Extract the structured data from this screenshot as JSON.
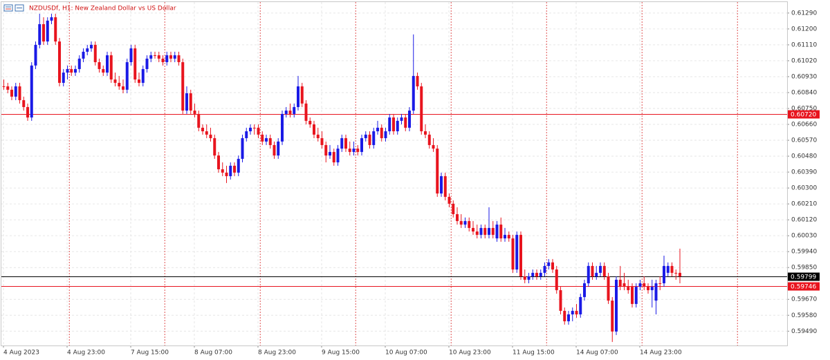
{
  "chart_data": {
    "type": "candlestick",
    "title": "NZDUSDf, H1:  New Zealand Dollar vs US Dollar",
    "up_color": "#1a1ae6",
    "down_color": "#e8141e",
    "grid": true,
    "ylim": [
      0.59409,
      0.61352
    ],
    "yticks": [
      {
        "value": 0.6129,
        "label": "0.61290"
      },
      {
        "value": 0.612,
        "label": "0.61200"
      },
      {
        "value": 0.6111,
        "label": "0.61110"
      },
      {
        "value": 0.6102,
        "label": "0.61020"
      },
      {
        "value": 0.6093,
        "label": "0.60930"
      },
      {
        "value": 0.6084,
        "label": "0.60840"
      },
      {
        "value": 0.6075,
        "label": "0.60750"
      },
      {
        "value": 0.6066,
        "label": "0.60660"
      },
      {
        "value": 0.6057,
        "label": "0.60570"
      },
      {
        "value": 0.6048,
        "label": "0.60480"
      },
      {
        "value": 0.6039,
        "label": "0.60390"
      },
      {
        "value": 0.603,
        "label": "0.60300"
      },
      {
        "value": 0.6021,
        "label": "0.60210"
      },
      {
        "value": 0.6012,
        "label": "0.60120"
      },
      {
        "value": 0.6003,
        "label": "0.60030"
      },
      {
        "value": 0.5994,
        "label": "0.59940"
      },
      {
        "value": 0.5985,
        "label": "0.59850"
      },
      {
        "value": 0.5967,
        "label": "0.59670"
      },
      {
        "value": 0.5958,
        "label": "0.59580"
      },
      {
        "value": 0.5949,
        "label": "0.59490"
      }
    ],
    "levels": [
      {
        "value": 0.6072,
        "label": "0.60720",
        "color": "#e8141e"
      },
      {
        "value": 0.59799,
        "label": "0.59799",
        "color": "#000000"
      },
      {
        "value": 0.59746,
        "label": "0.59746",
        "color": "#e8141e"
      }
    ],
    "categories": [
      "4 Aug 2023",
      null,
      null,
      null,
      null,
      null,
      null,
      null,
      null,
      null,
      null,
      null,
      null,
      null,
      null,
      null,
      "4 Aug 23:00",
      null,
      null,
      null,
      null,
      null,
      null,
      null,
      null,
      null,
      null,
      null,
      null,
      null,
      null,
      null,
      "7 Aug 15:00",
      null,
      null,
      null,
      null,
      null,
      null,
      null,
      null,
      null,
      null,
      null,
      null,
      null,
      null,
      null,
      "8 Aug 07:00",
      null,
      null,
      null,
      null,
      null,
      null,
      null,
      null,
      null,
      null,
      null,
      null,
      null,
      null,
      null,
      "8 Aug 23:00",
      null,
      null,
      null,
      null,
      null,
      null,
      null,
      null,
      null,
      null,
      null,
      null,
      null,
      null,
      null,
      "9 Aug 15:00",
      null,
      null,
      null,
      null,
      null,
      null,
      null,
      null,
      null,
      null,
      null,
      null,
      null,
      null,
      null,
      "10 Aug 07:00",
      null,
      null,
      null,
      null,
      null,
      null,
      null,
      null,
      null,
      null,
      null,
      null,
      null,
      null,
      null,
      "10 Aug 23:00",
      null,
      null,
      null,
      null,
      null,
      null,
      null,
      null,
      null,
      null,
      null,
      null,
      null,
      null,
      null,
      "11 Aug 15:00",
      null,
      null,
      null,
      null,
      null,
      null,
      null,
      null,
      null,
      null,
      null,
      null,
      null,
      null,
      null,
      "14 Aug 07:00",
      null,
      null,
      null,
      null,
      null,
      null,
      null,
      null,
      null,
      null,
      null,
      null,
      null,
      null,
      null,
      "14 Aug 23:00",
      null,
      null,
      null,
      null,
      null,
      null,
      null,
      null,
      null,
      null
    ],
    "candles": [
      [
        0.60875,
        0.60914,
        0.60856,
        0.60875
      ],
      [
        0.60875,
        0.60895,
        0.60836,
        0.60856
      ],
      [
        0.60856,
        0.60875,
        0.60797,
        0.60817
      ],
      [
        0.60817,
        0.60895,
        0.60797,
        0.60875
      ],
      [
        0.60875,
        0.60895,
        0.60778,
        0.60797
      ],
      [
        0.60797,
        0.60817,
        0.60738,
        0.60758
      ],
      [
        0.60758,
        0.60778,
        0.6068,
        0.60699
      ],
      [
        0.60699,
        0.61012,
        0.6068,
        0.60993
      ],
      [
        0.60993,
        0.61129,
        0.60973,
        0.6111
      ],
      [
        0.6111,
        0.61286,
        0.6109,
        0.61227
      ],
      [
        0.61227,
        0.61266,
        0.6111,
        0.61129
      ],
      [
        0.61129,
        0.61266,
        0.6111,
        0.61247
      ],
      [
        0.61247,
        0.61286,
        0.61227,
        0.61266
      ],
      [
        0.61266,
        0.61286,
        0.6111,
        0.61129
      ],
      [
        0.61129,
        0.61149,
        0.60875,
        0.60895
      ],
      [
        0.60895,
        0.60973,
        0.60875,
        0.60953
      ],
      [
        0.60953,
        0.60993,
        0.60914,
        0.60973
      ],
      [
        0.60973,
        0.60993,
        0.60934,
        0.60953
      ],
      [
        0.60953,
        0.60993,
        0.60934,
        0.60973
      ],
      [
        0.60973,
        0.61051,
        0.60953,
        0.61032
      ],
      [
        0.61032,
        0.6109,
        0.61012,
        0.61071
      ],
      [
        0.61071,
        0.6111,
        0.61051,
        0.6109
      ],
      [
        0.6109,
        0.61129,
        0.61071,
        0.6111
      ],
      [
        0.6111,
        0.61129,
        0.60993,
        0.61012
      ],
      [
        0.61012,
        0.61032,
        0.60953,
        0.60973
      ],
      [
        0.60973,
        0.60993,
        0.60934,
        0.60953
      ],
      [
        0.60953,
        0.61071,
        0.60934,
        0.61051
      ],
      [
        0.61051,
        0.61071,
        0.60895,
        0.60914
      ],
      [
        0.60914,
        0.60953,
        0.60875,
        0.60895
      ],
      [
        0.60895,
        0.60934,
        0.60856,
        0.60875
      ],
      [
        0.60875,
        0.60914,
        0.60836,
        0.60856
      ],
      [
        0.60856,
        0.61032,
        0.60836,
        0.61012
      ],
      [
        0.61012,
        0.6111,
        0.60993,
        0.6109
      ],
      [
        0.6109,
        0.6111,
        0.60895,
        0.60914
      ],
      [
        0.60914,
        0.60953,
        0.60875,
        0.60895
      ],
      [
        0.60895,
        0.60993,
        0.60875,
        0.60973
      ],
      [
        0.60973,
        0.61051,
        0.60953,
        0.61032
      ],
      [
        0.61032,
        0.61071,
        0.61012,
        0.61051
      ],
      [
        0.61051,
        0.61071,
        0.61032,
        0.61051
      ],
      [
        0.61051,
        0.61071,
        0.61012,
        0.61032
      ],
      [
        0.61032,
        0.61051,
        0.60993,
        0.61012
      ],
      [
        0.61012,
        0.61071,
        0.60993,
        0.61051
      ],
      [
        0.61051,
        0.61071,
        0.61012,
        0.61032
      ],
      [
        0.61032,
        0.61071,
        0.61012,
        0.61051
      ],
      [
        0.61051,
        0.61071,
        0.60993,
        0.61012
      ],
      [
        0.61012,
        0.61032,
        0.60719,
        0.60738
      ],
      [
        0.60738,
        0.60875,
        0.60719,
        0.60836
      ],
      [
        0.60836,
        0.60856,
        0.60719,
        0.60738
      ],
      [
        0.60738,
        0.60778,
        0.60699,
        0.60719
      ],
      [
        0.60719,
        0.60738,
        0.60621,
        0.60641
      ],
      [
        0.60641,
        0.6066,
        0.60602,
        0.60621
      ],
      [
        0.60621,
        0.6066,
        0.60582,
        0.60602
      ],
      [
        0.60602,
        0.60641,
        0.60563,
        0.60582
      ],
      [
        0.60582,
        0.60602,
        0.60465,
        0.60484
      ],
      [
        0.60484,
        0.60504,
        0.60387,
        0.60406
      ],
      [
        0.60406,
        0.60445,
        0.60367,
        0.60387
      ],
      [
        0.60387,
        0.60426,
        0.60328,
        0.60367
      ],
      [
        0.60367,
        0.60445,
        0.60348,
        0.60426
      ],
      [
        0.60426,
        0.60445,
        0.60367,
        0.60387
      ],
      [
        0.60387,
        0.60484,
        0.60367,
        0.60465
      ],
      [
        0.60465,
        0.60602,
        0.60445,
        0.60582
      ],
      [
        0.60582,
        0.60641,
        0.60563,
        0.60621
      ],
      [
        0.60621,
        0.6066,
        0.60602,
        0.60641
      ],
      [
        0.60641,
        0.6066,
        0.60602,
        0.60641
      ],
      [
        0.60641,
        0.6066,
        0.60582,
        0.60602
      ],
      [
        0.60602,
        0.60621,
        0.60543,
        0.60563
      ],
      [
        0.60563,
        0.60602,
        0.60543,
        0.60582
      ],
      [
        0.60582,
        0.60602,
        0.60523,
        0.60543
      ],
      [
        0.60543,
        0.60563,
        0.60465,
        0.60484
      ],
      [
        0.60484,
        0.60582,
        0.60465,
        0.60563
      ],
      [
        0.60563,
        0.60738,
        0.60543,
        0.60719
      ],
      [
        0.60719,
        0.60758,
        0.60699,
        0.60738
      ],
      [
        0.60738,
        0.60778,
        0.60699,
        0.60719
      ],
      [
        0.60719,
        0.60778,
        0.60699,
        0.60758
      ],
      [
        0.60758,
        0.60934,
        0.60738,
        0.60875
      ],
      [
        0.60875,
        0.60895,
        0.60758,
        0.60778
      ],
      [
        0.60778,
        0.60797,
        0.6066,
        0.6068
      ],
      [
        0.6068,
        0.60699,
        0.60641,
        0.6066
      ],
      [
        0.6066,
        0.6068,
        0.60582,
        0.60602
      ],
      [
        0.60602,
        0.60641,
        0.60563,
        0.60582
      ],
      [
        0.60582,
        0.60621,
        0.60523,
        0.60543
      ],
      [
        0.60543,
        0.60563,
        0.60445,
        0.60484
      ],
      [
        0.60484,
        0.60543,
        0.60465,
        0.60504
      ],
      [
        0.60504,
        0.60523,
        0.60426,
        0.60445
      ],
      [
        0.60445,
        0.60543,
        0.60426,
        0.60523
      ],
      [
        0.60523,
        0.60602,
        0.60504,
        0.60582
      ],
      [
        0.60582,
        0.60602,
        0.60504,
        0.60523
      ],
      [
        0.60523,
        0.60563,
        0.60484,
        0.60504
      ],
      [
        0.60504,
        0.60563,
        0.60484,
        0.60523
      ],
      [
        0.60523,
        0.60543,
        0.60484,
        0.60504
      ],
      [
        0.60504,
        0.60602,
        0.60484,
        0.60582
      ],
      [
        0.60582,
        0.60621,
        0.60563,
        0.60602
      ],
      [
        0.60602,
        0.60621,
        0.60523,
        0.60543
      ],
      [
        0.60543,
        0.60641,
        0.60523,
        0.60621
      ],
      [
        0.60621,
        0.6068,
        0.60602,
        0.60641
      ],
      [
        0.60641,
        0.6066,
        0.60563,
        0.60582
      ],
      [
        0.60582,
        0.60641,
        0.60563,
        0.60621
      ],
      [
        0.60621,
        0.60719,
        0.60602,
        0.60699
      ],
      [
        0.60699,
        0.60719,
        0.60602,
        0.60621
      ],
      [
        0.60621,
        0.60699,
        0.60602,
        0.6068
      ],
      [
        0.6068,
        0.60719,
        0.6066,
        0.60699
      ],
      [
        0.60699,
        0.60719,
        0.60621,
        0.60641
      ],
      [
        0.60641,
        0.60758,
        0.60621,
        0.60738
      ],
      [
        0.60738,
        0.61169,
        0.60719,
        0.60934
      ],
      [
        0.60934,
        0.60953,
        0.60856,
        0.60875
      ],
      [
        0.60875,
        0.60895,
        0.60602,
        0.60621
      ],
      [
        0.60621,
        0.6066,
        0.60582,
        0.60602
      ],
      [
        0.60602,
        0.60621,
        0.60523,
        0.60543
      ],
      [
        0.60543,
        0.60582,
        0.60504,
        0.60523
      ],
      [
        0.60523,
        0.60543,
        0.6025,
        0.60269
      ],
      [
        0.60269,
        0.60387,
        0.6025,
        0.60367
      ],
      [
        0.60367,
        0.60387,
        0.6023,
        0.6025
      ],
      [
        0.6025,
        0.60269,
        0.60191,
        0.60211
      ],
      [
        0.60211,
        0.6023,
        0.60133,
        0.60152
      ],
      [
        0.60152,
        0.60191,
        0.60093,
        0.60113
      ],
      [
        0.60113,
        0.60152,
        0.60074,
        0.60093
      ],
      [
        0.60093,
        0.60133,
        0.60074,
        0.60113
      ],
      [
        0.60113,
        0.60133,
        0.60054,
        0.60074
      ],
      [
        0.60074,
        0.60113,
        0.60035,
        0.60054
      ],
      [
        0.60054,
        0.60093,
        0.60015,
        0.60035
      ],
      [
        0.60035,
        0.60093,
        0.60015,
        0.60074
      ],
      [
        0.60074,
        0.60093,
        0.60015,
        0.60035
      ],
      [
        0.60035,
        0.60191,
        0.60015,
        0.60074
      ],
      [
        0.60074,
        0.60113,
        0.60015,
        0.60035
      ],
      [
        0.60015,
        0.60113,
        0.59996,
        0.60093
      ],
      [
        0.60093,
        0.60133,
        0.59996,
        0.60015
      ],
      [
        0.60015,
        0.60074,
        0.59996,
        0.60035
      ],
      [
        0.60035,
        0.60054,
        0.59996,
        0.60015
      ],
      [
        0.60015,
        0.60035,
        0.5982,
        0.59839
      ],
      [
        0.59839,
        0.60054,
        0.5982,
        0.60035
      ],
      [
        0.60035,
        0.60054,
        0.59781,
        0.598
      ],
      [
        0.598,
        0.59839,
        0.59761,
        0.59781
      ],
      [
        0.59781,
        0.5982,
        0.59761,
        0.598
      ],
      [
        0.598,
        0.59839,
        0.59781,
        0.5982
      ],
      [
        0.5982,
        0.59839,
        0.59781,
        0.598
      ],
      [
        0.598,
        0.59839,
        0.59781,
        0.5982
      ],
      [
        0.5982,
        0.59879,
        0.598,
        0.59859
      ],
      [
        0.59859,
        0.59898,
        0.59839,
        0.59879
      ],
      [
        0.59879,
        0.59898,
        0.5982,
        0.59839
      ],
      [
        0.59839,
        0.59859,
        0.59702,
        0.59722
      ],
      [
        0.59722,
        0.59741,
        0.59585,
        0.59605
      ],
      [
        0.59605,
        0.59624,
        0.59527,
        0.59546
      ],
      [
        0.59546,
        0.59605,
        0.59527,
        0.59585
      ],
      [
        0.59585,
        0.59624,
        0.59546,
        0.59605
      ],
      [
        0.59605,
        0.59644,
        0.59566,
        0.59585
      ],
      [
        0.59585,
        0.59702,
        0.59566,
        0.59683
      ],
      [
        0.59683,
        0.59781,
        0.59663,
        0.59761
      ],
      [
        0.59761,
        0.59879,
        0.59741,
        0.59859
      ],
      [
        0.59859,
        0.59879,
        0.59781,
        0.598
      ],
      [
        0.598,
        0.59859,
        0.59781,
        0.5982
      ],
      [
        0.5982,
        0.59879,
        0.598,
        0.59859
      ],
      [
        0.59859,
        0.59879,
        0.59781,
        0.598
      ],
      [
        0.598,
        0.5982,
        0.59644,
        0.59663
      ],
      [
        0.59663,
        0.59683,
        0.59429,
        0.59488
      ],
      [
        0.59488,
        0.598,
        0.59468,
        0.59781
      ],
      [
        0.59781,
        0.59859,
        0.59722,
        0.59741
      ],
      [
        0.59761,
        0.5982,
        0.59722,
        0.59741
      ],
      [
        0.59741,
        0.59781,
        0.59702,
        0.59722
      ],
      [
        0.59741,
        0.59761,
        0.59624,
        0.59644
      ],
      [
        0.59644,
        0.59761,
        0.59624,
        0.59741
      ],
      [
        0.59741,
        0.59781,
        0.59722,
        0.59761
      ],
      [
        0.59761,
        0.598,
        0.59722,
        0.59741
      ],
      [
        0.59741,
        0.59761,
        0.59702,
        0.59722
      ],
      [
        0.59722,
        0.59781,
        0.59624,
        0.59741
      ],
      [
        0.59663,
        0.59781,
        0.59585,
        0.59761
      ],
      [
        0.59761,
        0.598,
        0.59722,
        0.59761
      ],
      [
        0.59761,
        0.59917,
        0.59741,
        0.59859
      ],
      [
        0.5982,
        0.59879,
        0.598,
        0.59859
      ],
      [
        0.59859,
        0.59879,
        0.598,
        0.5982
      ],
      [
        0.5982,
        0.59839,
        0.59781,
        0.5982
      ],
      [
        0.5982,
        0.59957,
        0.59761,
        0.598
      ]
    ]
  }
}
